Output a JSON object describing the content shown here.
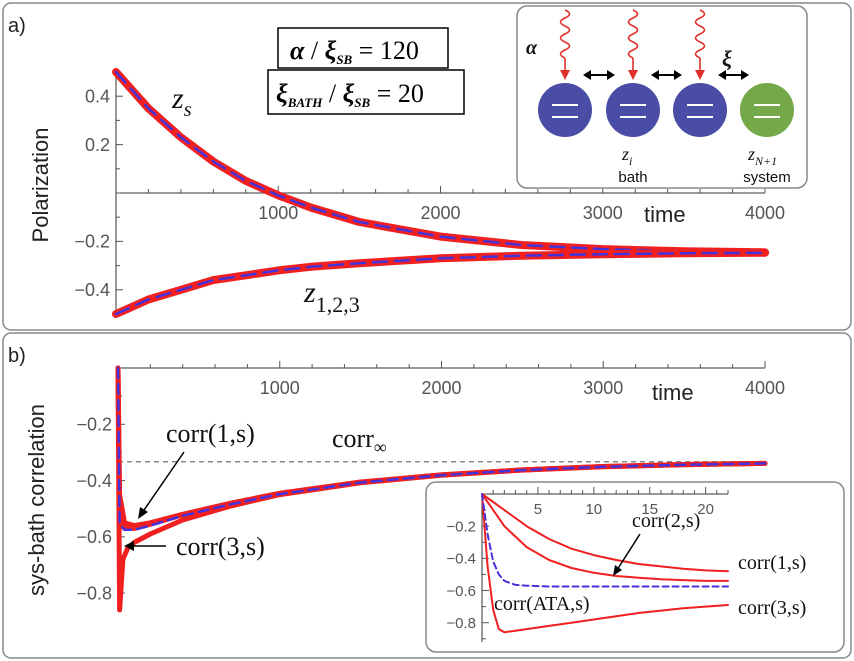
{
  "panel_a": {
    "label": "a)",
    "ylabel": "Polarization",
    "xlabel": "time",
    "box_ratio_1": {
      "num": "α",
      "den": "ξ",
      "den_sub": "SB",
      "value": "120"
    },
    "box_ratio_2": {
      "num": "ξ",
      "num_sub": "BATH",
      "den": "ξ",
      "den_sub": "SB",
      "value": "20"
    },
    "label_zs": {
      "main": "z",
      "sub": "s"
    },
    "label_z123": {
      "main": "z",
      "sub": "1,2,3"
    },
    "schematic": {
      "alpha_label": "α",
      "xi_label": "ξ",
      "zi_label": {
        "main": "z",
        "sub": "i"
      },
      "zN1_label": {
        "main": "z",
        "sub": "N+1"
      },
      "bath_label": "bath",
      "system_label": "system",
      "bath_color": "#4a4da6",
      "system_color": "#74a848",
      "wave_color": "#e0302a"
    }
  },
  "panel_b": {
    "label": "b)",
    "ylabel": "sys-bath correlation",
    "xlabel": "time",
    "annot_corr1": "corr(1,s)",
    "annot_corr3": "corr(3,s)",
    "annot_corrinf": {
      "main": "corr",
      "sub": "∞"
    },
    "inset_labels": {
      "corr1": "corr(1,s)",
      "corr2": "corr(2,s)",
      "corr3": "corr(3,s)",
      "corrATA": "corr(ATA,s)"
    }
  },
  "colors": {
    "red": "#f02020",
    "blue": "#4433dd",
    "gray_dash": "#888888",
    "frame": "#888888"
  },
  "chart_data": [
    {
      "type": "line",
      "id": "panel_a",
      "title": "",
      "xlabel": "time",
      "ylabel": "Polarization",
      "xlim": [
        0,
        4000
      ],
      "ylim": [
        -0.5,
        0.5
      ],
      "xticks": [
        1000,
        2000,
        3000,
        4000
      ],
      "yticks": [
        0.4,
        0.2,
        -0.2,
        -0.4
      ],
      "ytick_labels": [
        "0.4",
        "0.2",
        "-0.2",
        "-0.4"
      ],
      "series": [
        {
          "name": "z_s (red)",
          "x": [
            0,
            200,
            400,
            600,
            800,
            1000,
            1200,
            1500,
            2000,
            2500,
            3000,
            3500,
            4000
          ],
          "y": [
            0.5,
            0.35,
            0.23,
            0.13,
            0.05,
            -0.01,
            -0.06,
            -0.12,
            -0.18,
            -0.215,
            -0.232,
            -0.241,
            -0.245
          ]
        },
        {
          "name": "z_s (blue dashed)",
          "x": [
            0,
            200,
            400,
            600,
            800,
            1000,
            1200,
            1500,
            2000,
            2500,
            3000,
            3500,
            4000
          ],
          "y": [
            0.5,
            0.35,
            0.23,
            0.13,
            0.05,
            -0.01,
            -0.06,
            -0.12,
            -0.18,
            -0.215,
            -0.232,
            -0.241,
            -0.245
          ]
        },
        {
          "name": "z_1,2,3 (red)",
          "x": [
            0,
            200,
            400,
            600,
            800,
            1000,
            1200,
            1500,
            2000,
            2500,
            3000,
            3500,
            4000
          ],
          "y": [
            -0.5,
            -0.44,
            -0.4,
            -0.36,
            -0.34,
            -0.32,
            -0.305,
            -0.29,
            -0.27,
            -0.259,
            -0.253,
            -0.249,
            -0.247
          ]
        },
        {
          "name": "z_1,2,3 (blue dashed)",
          "x": [
            0,
            200,
            400,
            600,
            800,
            1000,
            1200,
            1500,
            2000,
            2500,
            3000,
            3500,
            4000
          ],
          "y": [
            -0.5,
            -0.44,
            -0.4,
            -0.36,
            -0.34,
            -0.32,
            -0.305,
            -0.29,
            -0.27,
            -0.259,
            -0.253,
            -0.249,
            -0.247
          ]
        }
      ]
    },
    {
      "type": "line",
      "id": "panel_b",
      "title": "",
      "xlabel": "time",
      "ylabel": "sys-bath correlation",
      "xlim": [
        0,
        4000
      ],
      "ylim": [
        -0.86,
        0
      ],
      "xticks": [
        1000,
        2000,
        3000,
        4000
      ],
      "yticks": [
        -0.2,
        -0.4,
        -0.6,
        -0.8
      ],
      "ytick_labels": [
        "-0.2",
        "-0.4",
        "-0.6",
        "-0.8"
      ],
      "reference_line": {
        "name": "corr_∞",
        "y": -0.333
      },
      "series": [
        {
          "name": "corr(1,s)",
          "x": [
            0,
            10,
            40,
            100,
            200,
            400,
            700,
            1000,
            1500,
            2000,
            2500,
            3000,
            3500,
            4000
          ],
          "y": [
            0,
            -0.45,
            -0.55,
            -0.56,
            -0.55,
            -0.52,
            -0.48,
            -0.445,
            -0.405,
            -0.38,
            -0.362,
            -0.35,
            -0.343,
            -0.339
          ]
        },
        {
          "name": "corr(2,s)",
          "x": [
            0,
            10,
            40,
            100,
            200,
            400,
            700,
            1000,
            1500,
            2000,
            2500,
            3000,
            3500,
            4000
          ],
          "y": [
            0,
            -0.55,
            -0.57,
            -0.57,
            -0.555,
            -0.522,
            -0.482,
            -0.447,
            -0.406,
            -0.38,
            -0.362,
            -0.35,
            -0.343,
            -0.339
          ]
        },
        {
          "name": "corr(3,s)",
          "x": [
            0,
            10,
            30,
            60,
            100,
            200,
            400,
            700,
            1000,
            1500,
            2000,
            2500,
            3000,
            3500,
            4000
          ],
          "y": [
            0,
            -0.86,
            -0.68,
            -0.64,
            -0.62,
            -0.59,
            -0.54,
            -0.49,
            -0.45,
            -0.408,
            -0.381,
            -0.363,
            -0.351,
            -0.344,
            -0.339
          ]
        },
        {
          "name": "corr(ATA,s)",
          "x": [
            0,
            10,
            40,
            100,
            200,
            400,
            700,
            1000,
            1500,
            2000,
            2500,
            3000,
            3500,
            4000
          ],
          "y": [
            0,
            -0.55,
            -0.575,
            -0.575,
            -0.56,
            -0.525,
            -0.484,
            -0.448,
            -0.407,
            -0.381,
            -0.363,
            -0.351,
            -0.344,
            -0.339
          ]
        }
      ]
    },
    {
      "type": "line",
      "id": "inset_b",
      "title": "",
      "xlim": [
        0,
        22
      ],
      "ylim": [
        -0.92,
        0
      ],
      "xticks": [
        5,
        10,
        15,
        20
      ],
      "yticks": [
        -0.2,
        -0.4,
        -0.6,
        -0.8
      ],
      "ytick_labels": [
        "-0.2",
        "-0.4",
        "-0.6",
        "-0.8"
      ],
      "series": [
        {
          "name": "corr(1,s)",
          "x": [
            0,
            1,
            2,
            4,
            6,
            8,
            10,
            12,
            14,
            16,
            18,
            20,
            22
          ],
          "y": [
            0,
            -0.05,
            -0.1,
            -0.2,
            -0.28,
            -0.34,
            -0.38,
            -0.41,
            -0.435,
            -0.45,
            -0.465,
            -0.475,
            -0.48
          ]
        },
        {
          "name": "corr(2,s)",
          "x": [
            0,
            1,
            2,
            4,
            6,
            8,
            10,
            12,
            14,
            16,
            18,
            20,
            22
          ],
          "y": [
            0,
            -0.1,
            -0.2,
            -0.33,
            -0.41,
            -0.46,
            -0.49,
            -0.51,
            -0.52,
            -0.53,
            -0.535,
            -0.54,
            -0.54
          ]
        },
        {
          "name": "corr(3,s)",
          "x": [
            0,
            0.5,
            1,
            1.5,
            2,
            3,
            4,
            6,
            8,
            10,
            12,
            14,
            16,
            18,
            20,
            22
          ],
          "y": [
            0,
            -0.45,
            -0.72,
            -0.84,
            -0.86,
            -0.85,
            -0.84,
            -0.82,
            -0.8,
            -0.78,
            -0.76,
            -0.74,
            -0.725,
            -0.71,
            -0.7,
            -0.69
          ]
        },
        {
          "name": "corr(ATA,s)",
          "x": [
            0,
            0.5,
            1,
            1.5,
            2,
            3,
            4,
            6,
            8,
            10,
            14,
            18,
            22
          ],
          "y": [
            0,
            -0.25,
            -0.42,
            -0.5,
            -0.54,
            -0.565,
            -0.57,
            -0.575,
            -0.575,
            -0.575,
            -0.575,
            -0.575,
            -0.575
          ]
        }
      ]
    }
  ]
}
